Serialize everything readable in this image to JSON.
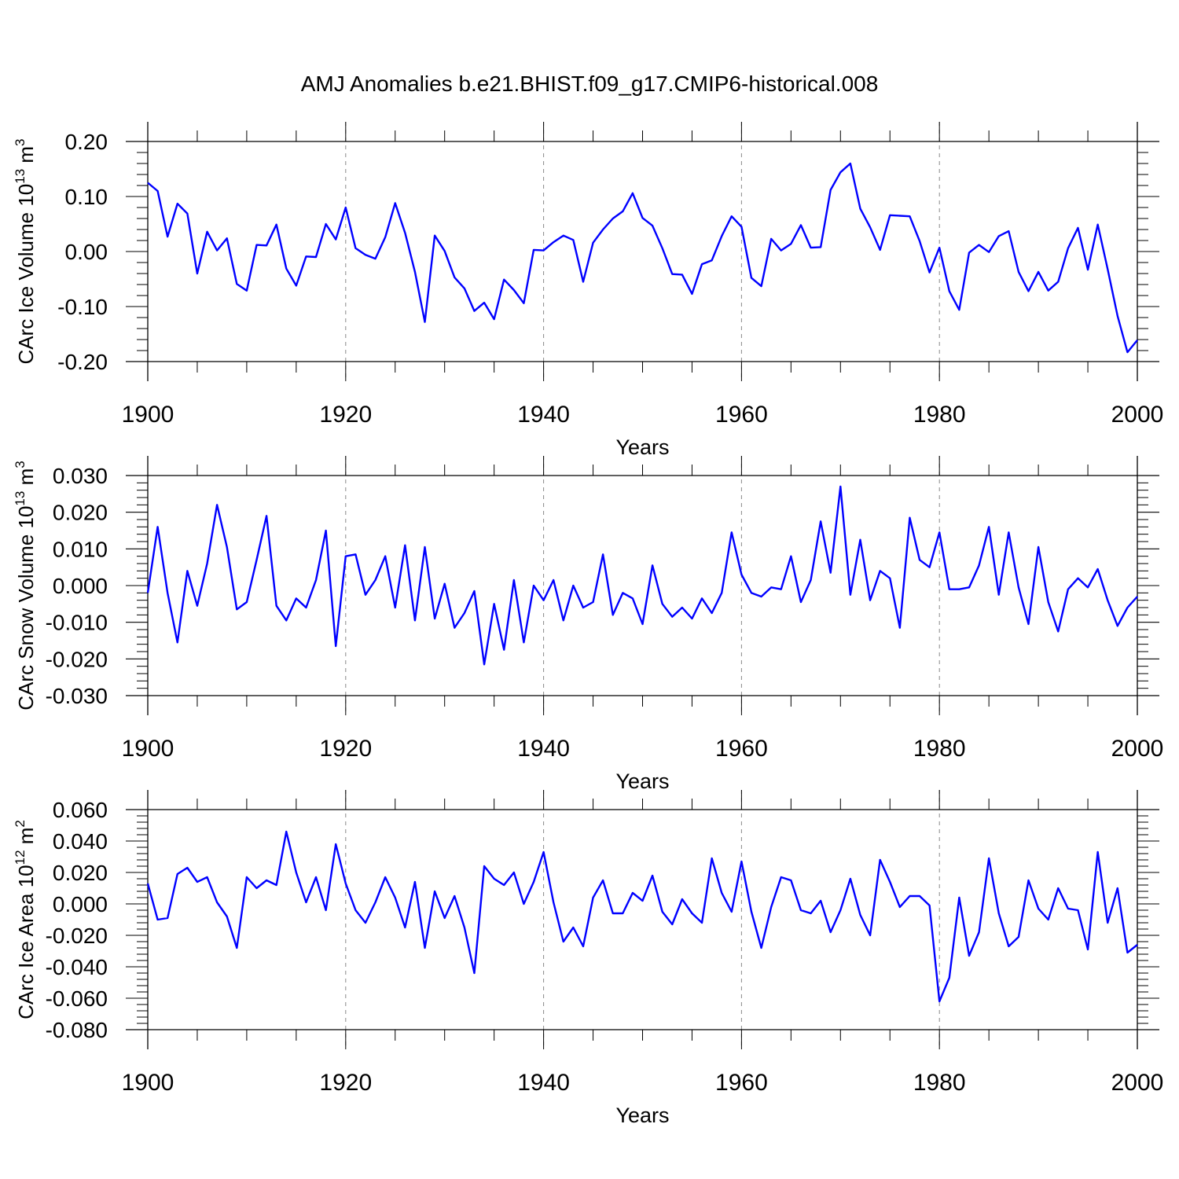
{
  "title": "AMJ Anomalies b.e21.BHIST.f09_g17.CMIP6-historical.008",
  "chart_data": [
    {
      "type": "line",
      "title": "AMJ Anomalies b.e21.BHIST.f09_g17.CMIP6-historical.008",
      "xlabel": "Years",
      "ylabel": {
        "text": "CArc Ice Volume 10",
        "exp": "13",
        "unit": "m",
        "unit_exp": "3"
      },
      "xlim": [
        1900,
        2000
      ],
      "ylim": [
        -0.2,
        0.2
      ],
      "yticks": [
        0.2,
        0.1,
        0.0,
        -0.1,
        -0.2
      ],
      "ytick_labels": [
        "0.20",
        "0.10",
        "0.00",
        "-0.10",
        "-0.20"
      ],
      "xticks": [
        1900,
        1920,
        1940,
        1960,
        1980,
        2000
      ],
      "xtick_labels": [
        "1900",
        "1920",
        "1940",
        "1960",
        "1980",
        "2000"
      ],
      "grid_x": [
        1920,
        1940,
        1960,
        1980
      ],
      "color": "#0000ff",
      "x_start": 1900,
      "values": [
        0.125,
        0.11,
        0.027,
        0.087,
        0.069,
        -0.04,
        0.036,
        0.002,
        0.024,
        -0.059,
        -0.071,
        0.012,
        0.011,
        0.049,
        -0.031,
        -0.062,
        -0.009,
        -0.01,
        0.05,
        0.022,
        0.08,
        0.006,
        -0.006,
        -0.013,
        0.026,
        0.088,
        0.034,
        -0.037,
        -0.128,
        0.029,
        0.001,
        -0.047,
        -0.067,
        -0.108,
        -0.093,
        -0.123,
        -0.051,
        -0.07,
        -0.094,
        0.003,
        0.002,
        0.017,
        0.029,
        0.021,
        -0.055,
        0.016,
        0.04,
        0.06,
        0.073,
        0.106,
        0.061,
        0.047,
        0.006,
        -0.041,
        -0.042,
        -0.077,
        -0.023,
        -0.016,
        0.028,
        0.064,
        0.045,
        -0.048,
        -0.063,
        0.023,
        0.002,
        0.014,
        0.048,
        0.007,
        0.008,
        0.112,
        0.144,
        0.16,
        0.078,
        0.044,
        0.003,
        0.066,
        0.065,
        0.064,
        0.019,
        -0.038,
        0.007,
        -0.072,
        -0.106,
        -0.002,
        0.012,
        -0.001,
        0.028,
        0.037,
        -0.037,
        -0.072,
        -0.037,
        -0.071,
        -0.055,
        0.006,
        0.043,
        -0.033,
        0.049,
        -0.032,
        -0.117,
        -0.183,
        -0.161
      ]
    },
    {
      "type": "line",
      "xlabel": "Years",
      "ylabel": {
        "text": "CArc Snow Volume 10",
        "exp": "13",
        "unit": "m",
        "unit_exp": "3"
      },
      "xlim": [
        1900,
        2000
      ],
      "ylim": [
        -0.03,
        0.03
      ],
      "yticks": [
        0.03,
        0.02,
        0.01,
        0.0,
        -0.01,
        -0.02,
        -0.03
      ],
      "ytick_labels": [
        "0.030",
        "0.020",
        "0.010",
        "0.000",
        "-0.010",
        "-0.020",
        "-0.030"
      ],
      "xticks": [
        1900,
        1920,
        1940,
        1960,
        1980,
        2000
      ],
      "xtick_labels": [
        "1900",
        "1920",
        "1940",
        "1960",
        "1980",
        "2000"
      ],
      "grid_x": [
        1920,
        1940,
        1960,
        1980
      ],
      "color": "#0000ff",
      "x_start": 1900,
      "values": [
        -0.002,
        0.016,
        -0.002,
        -0.0155,
        0.004,
        -0.0055,
        0.006,
        0.022,
        0.0105,
        -0.0065,
        -0.0045,
        0.007,
        0.019,
        -0.0055,
        -0.0095,
        -0.0035,
        -0.006,
        0.0015,
        0.015,
        -0.0165,
        0.008,
        0.0085,
        -0.0025,
        0.0015,
        0.008,
        -0.006,
        0.011,
        -0.0095,
        0.0105,
        -0.009,
        0.0005,
        -0.0115,
        -0.0075,
        -0.0015,
        -0.0215,
        -0.005,
        -0.0175,
        0.0015,
        -0.0155,
        0.0,
        -0.004,
        0.0015,
        -0.0095,
        0.0,
        -0.006,
        -0.0045,
        0.0085,
        -0.008,
        -0.002,
        -0.0035,
        -0.0105,
        0.0055,
        -0.005,
        -0.0085,
        -0.006,
        -0.009,
        -0.0035,
        -0.0075,
        -0.002,
        0.0145,
        0.003,
        -0.002,
        -0.003,
        -0.0005,
        -0.001,
        0.008,
        -0.0045,
        0.0015,
        0.0175,
        0.0035,
        0.027,
        -0.0025,
        0.0125,
        -0.004,
        0.004,
        0.002,
        -0.0115,
        0.0185,
        0.007,
        0.005,
        0.0145,
        -0.001,
        -0.001,
        -0.0005,
        0.0055,
        0.016,
        -0.0025,
        0.0145,
        -0.0005,
        -0.0105,
        0.0105,
        -0.0045,
        -0.0125,
        -0.001,
        0.002,
        -0.0005,
        0.0045,
        -0.004,
        -0.011,
        -0.006,
        -0.003
      ]
    },
    {
      "type": "line",
      "xlabel": "Years",
      "ylabel": {
        "text": "CArc Ice Area 10",
        "exp": "12",
        "unit": "m",
        "unit_exp": "2"
      },
      "xlim": [
        1900,
        2000
      ],
      "ylim": [
        -0.08,
        0.06
      ],
      "yticks": [
        0.06,
        0.04,
        0.02,
        0.0,
        -0.02,
        -0.04,
        -0.06,
        -0.08
      ],
      "ytick_labels": [
        "0.060",
        "0.040",
        "0.020",
        "0.000",
        "-0.020",
        "-0.040",
        "-0.060",
        "-0.080"
      ],
      "xticks": [
        1900,
        1920,
        1940,
        1960,
        1980,
        2000
      ],
      "xtick_labels": [
        "1900",
        "1920",
        "1940",
        "1960",
        "1980",
        "2000"
      ],
      "grid_x": [
        1920,
        1940,
        1960,
        1980
      ],
      "color": "#0000ff",
      "x_start": 1900,
      "values": [
        0.013,
        -0.01,
        -0.009,
        0.019,
        0.023,
        0.014,
        0.017,
        0.001,
        -0.008,
        -0.028,
        0.017,
        0.01,
        0.015,
        0.012,
        0.046,
        0.02,
        0.001,
        0.017,
        -0.004,
        0.038,
        0.013,
        -0.004,
        -0.012,
        0.001,
        0.017,
        0.004,
        -0.015,
        0.014,
        -0.028,
        0.008,
        -0.009,
        0.005,
        -0.015,
        -0.044,
        0.024,
        0.016,
        0.012,
        0.02,
        0.0,
        0.014,
        0.033,
        0.001,
        -0.024,
        -0.015,
        -0.027,
        0.004,
        0.015,
        -0.006,
        -0.006,
        0.007,
        0.002,
        0.018,
        -0.005,
        -0.013,
        0.003,
        -0.006,
        -0.012,
        0.029,
        0.007,
        -0.005,
        0.027,
        -0.005,
        -0.028,
        -0.002,
        0.017,
        0.015,
        -0.004,
        -0.006,
        0.002,
        -0.018,
        -0.004,
        0.016,
        -0.007,
        -0.02,
        0.028,
        0.014,
        -0.002,
        0.005,
        0.005,
        -0.001,
        -0.062,
        -0.047,
        0.004,
        -0.033,
        -0.018,
        0.029,
        -0.006,
        -0.027,
        -0.021,
        0.015,
        -0.003,
        -0.01,
        0.01,
        -0.003,
        -0.004,
        -0.029,
        0.033,
        -0.012,
        0.01,
        -0.031,
        -0.026
      ]
    }
  ]
}
